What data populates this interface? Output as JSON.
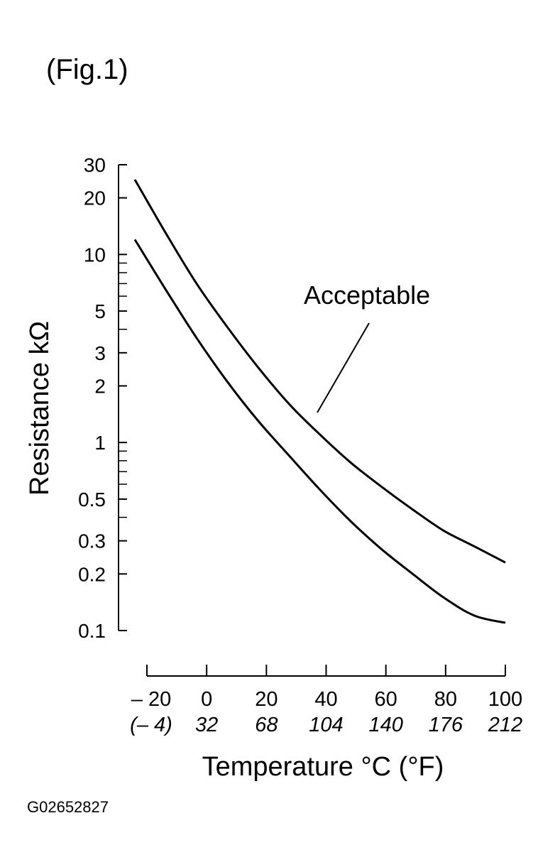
{
  "figure": {
    "label": "(Fig.1)",
    "code": "G02652827"
  },
  "chart_data": {
    "type": "line",
    "xlabel": "Temperature °C (°F)",
    "ylabel": "Resistance kΩ",
    "yscale": "log",
    "xlim": [
      -20,
      100
    ],
    "ylim": [
      0.1,
      30
    ],
    "x_ticks": [
      -20,
      0,
      20,
      40,
      60,
      80,
      100
    ],
    "x_tick_labels": [
      "– 20",
      "0",
      "20",
      "40",
      "60",
      "80",
      "100"
    ],
    "x_tick_labels_f": [
      "(– 4)",
      "32",
      "68",
      "104",
      "140",
      "176",
      "212"
    ],
    "y_ticks": [
      0.1,
      0.2,
      0.3,
      0.5,
      1,
      2,
      3,
      5,
      10,
      20,
      30
    ],
    "y_tick_labels": [
      "0.1",
      "0.2",
      "0.3",
      "0.5",
      "1",
      "2",
      "3",
      "5",
      "10",
      "20",
      "30"
    ],
    "y_minor_ticks": [
      0.4,
      0.6,
      0.7,
      0.8,
      0.9,
      4,
      6,
      7,
      8,
      9
    ],
    "annotation": "Acceptable",
    "series": [
      {
        "role": "upper-limit",
        "x": [
          -20,
          -10,
          0,
          10,
          20,
          30,
          40,
          50,
          60,
          70,
          80,
          90,
          100
        ],
        "values": [
          25,
          13,
          7,
          4.1,
          2.5,
          1.6,
          1.1,
          0.78,
          0.58,
          0.44,
          0.34,
          0.28,
          0.23
        ]
      },
      {
        "role": "lower-limit",
        "x": [
          -20,
          -10,
          0,
          10,
          20,
          30,
          40,
          50,
          60,
          70,
          80,
          90,
          100
        ],
        "values": [
          12,
          6.5,
          3.6,
          2.1,
          1.3,
          0.85,
          0.56,
          0.38,
          0.27,
          0.2,
          0.15,
          0.12,
          0.11
        ]
      }
    ],
    "grid": false,
    "legend": "none"
  }
}
